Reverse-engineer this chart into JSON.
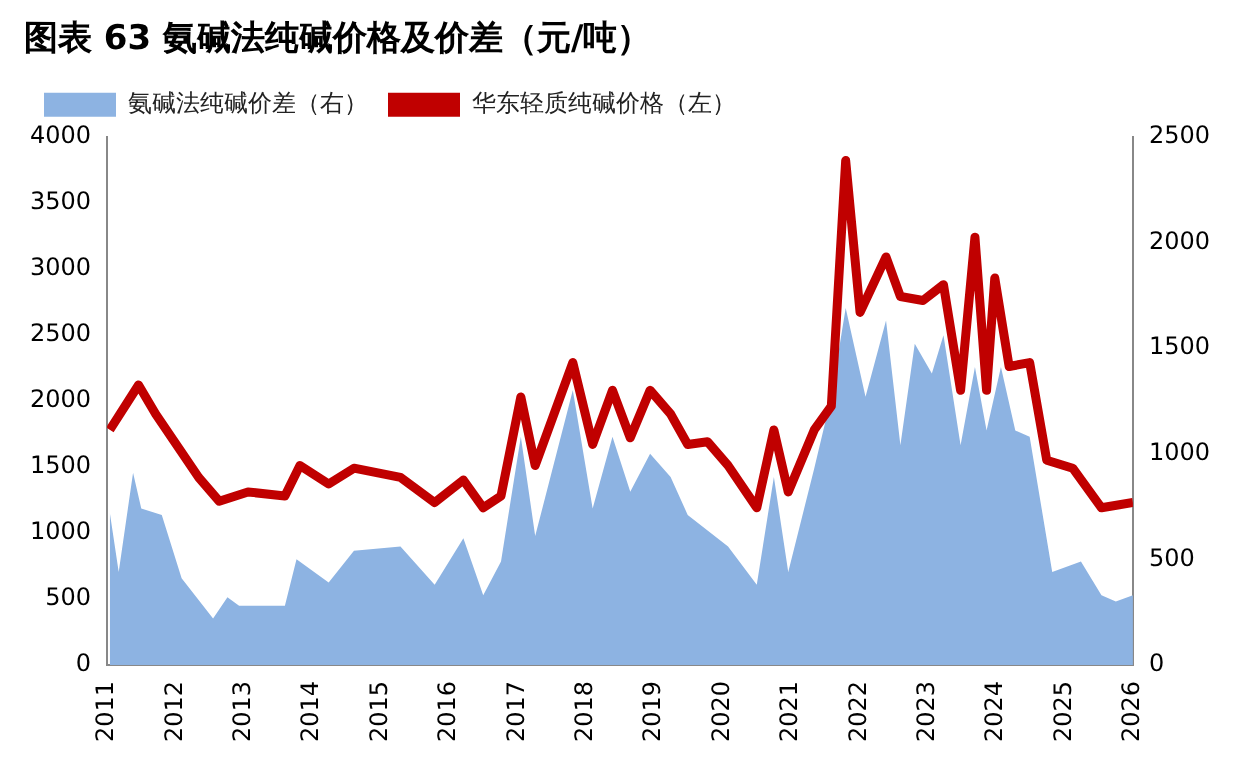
{
  "chart_data": {
    "type": "line",
    "title": "图表 63 氨碱法纯碱价格及价差（元/吨）",
    "xlim": [
      2011,
      2026
    ],
    "xticks": [
      2011,
      2012,
      2013,
      2014,
      2015,
      2016,
      2017,
      2018,
      2019,
      2020,
      2021,
      2022,
      2023,
      2024,
      2025,
      2026
    ],
    "ylim": [
      0,
      4000
    ],
    "yticks": [
      0,
      500,
      1000,
      1500,
      2000,
      2500,
      3000,
      3500,
      4000
    ],
    "y2lim": [
      0,
      2500
    ],
    "y2ticks": [
      0,
      500,
      1000,
      1500,
      2000,
      2500
    ],
    "grid": false,
    "legend": "top left",
    "marker": "none",
    "series": [
      {
        "name": "氨碱法纯碱价差（右）",
        "type": "area",
        "axis": "y2",
        "color": "#8db3e2",
        "x": [
          2011.04,
          2011.17,
          2011.38,
          2011.5,
          2011.8,
          2012.09,
          2012.55,
          2012.76,
          2012.93,
          2013.6,
          2013.77,
          2014.24,
          2014.61,
          2015.29,
          2015.79,
          2016.21,
          2016.5,
          2016.76,
          2017.05,
          2017.26,
          2017.81,
          2018.1,
          2018.39,
          2018.65,
          2018.94,
          2019.24,
          2019.49,
          2020.08,
          2020.5,
          2020.75,
          2020.96,
          2021.34,
          2021.59,
          2021.8,
          2022.09,
          2022.39,
          2022.6,
          2022.81,
          2023.06,
          2023.23,
          2023.48,
          2023.69,
          2023.86,
          2024.07,
          2024.28,
          2024.49,
          2024.82,
          2025.24,
          2025.54,
          2025.75,
          2026.0
        ],
        "values": [
          720,
          440,
          910,
          740,
          710,
          410,
          220,
          320,
          280,
          280,
          500,
          390,
          540,
          560,
          380,
          600,
          330,
          490,
          1080,
          610,
          1300,
          740,
          1080,
          820,
          1000,
          890,
          710,
          560,
          380,
          890,
          440,
          930,
          1270,
          1690,
          1270,
          1630,
          1040,
          1520,
          1380,
          1560,
          1040,
          1410,
          1110,
          1410,
          1110,
          1080,
          440,
          490,
          330,
          300,
          330
        ]
      },
      {
        "name": "华东轻质纯碱价格（左）",
        "color": "#c00000",
        "x": [
          2011.04,
          2011.46,
          2011.71,
          2012.34,
          2012.64,
          2013.06,
          2013.6,
          2013.82,
          2014.24,
          2014.61,
          2015.29,
          2015.79,
          2016.21,
          2016.5,
          2016.76,
          2017.05,
          2017.26,
          2017.81,
          2018.1,
          2018.39,
          2018.65,
          2018.94,
          2019.24,
          2019.49,
          2019.78,
          2020.08,
          2020.5,
          2020.75,
          2020.96,
          2021.34,
          2021.59,
          2021.8,
          2022.01,
          2022.39,
          2022.6,
          2022.93,
          2023.23,
          2023.48,
          2023.69,
          2023.86,
          2023.98,
          2024.19,
          2024.49,
          2024.74,
          2025.12,
          2025.54,
          2026.0
        ],
        "values": [
          1780,
          2120,
          1900,
          1420,
          1240,
          1310,
          1280,
          1510,
          1370,
          1490,
          1420,
          1230,
          1400,
          1190,
          1280,
          2030,
          1510,
          2290,
          1670,
          2080,
          1720,
          2080,
          1900,
          1670,
          1690,
          1510,
          1190,
          1780,
          1310,
          1780,
          1960,
          3820,
          2670,
          3090,
          2790,
          2760,
          2880,
          2080,
          3240,
          2080,
          2930,
          2260,
          2290,
          1550,
          1490,
          1190,
          1230
        ]
      }
    ]
  }
}
